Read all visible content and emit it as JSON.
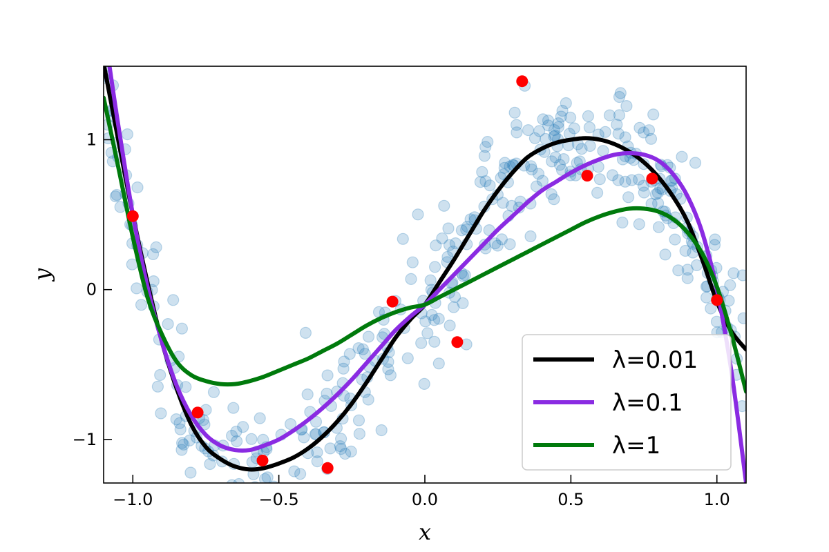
{
  "chart_data": {
    "type": "line",
    "title": "",
    "xlabel": "x",
    "ylabel": "y",
    "xlim": [
      -1.1,
      1.1
    ],
    "ylim": [
      -1.29,
      1.49
    ],
    "x_ticks": [
      -1.0,
      -0.5,
      0.0,
      0.5,
      1.0
    ],
    "x_tick_labels": [
      "−1.0",
      "−0.5",
      "0.0",
      "0.5",
      "1.0"
    ],
    "y_ticks": [
      -1,
      0,
      1
    ],
    "y_tick_labels": [
      "−1",
      "0",
      "1"
    ],
    "grid": false,
    "legend_position": "bottom-right",
    "background_points": {
      "color": "#1f77b4",
      "opacity": 0.22,
      "seed": 7,
      "count": 420,
      "noise_sd": 0.22
    },
    "training_points": {
      "color": "#ff0000",
      "x": [
        -1.0,
        -0.778,
        -0.556,
        -0.333,
        -0.111,
        0.111,
        0.333,
        0.556,
        0.778,
        1.0
      ],
      "y": [
        0.49,
        -0.82,
        -1.14,
        -1.19,
        -0.08,
        -0.35,
        1.39,
        0.76,
        0.74,
        -0.07
      ]
    },
    "series": [
      {
        "name": "λ=0.01",
        "color": "#000000",
        "x": [
          -1.1,
          -1.05,
          -1.0,
          -0.95,
          -0.9,
          -0.85,
          -0.8,
          -0.75,
          -0.7,
          -0.65,
          -0.6,
          -0.55,
          -0.5,
          -0.45,
          -0.4,
          -0.35,
          -0.3,
          -0.25,
          -0.2,
          -0.15,
          -0.1,
          -0.05,
          0.0,
          0.05,
          0.1,
          0.15,
          0.2,
          0.25,
          0.3,
          0.35,
          0.4,
          0.45,
          0.5,
          0.55,
          0.6,
          0.65,
          0.7,
          0.75,
          0.8,
          0.85,
          0.9,
          0.95,
          1.0,
          1.05,
          1.1
        ],
        "y": [
          1.51,
          1.0,
          0.5,
          0.05,
          -0.35,
          -0.66,
          -0.9,
          -1.05,
          -1.13,
          -1.18,
          -1.2,
          -1.19,
          -1.16,
          -1.12,
          -1.06,
          -0.98,
          -0.88,
          -0.76,
          -0.62,
          -0.47,
          -0.32,
          -0.2,
          -0.1,
          0.05,
          0.2,
          0.36,
          0.52,
          0.66,
          0.78,
          0.88,
          0.94,
          0.98,
          1.0,
          1.01,
          1.0,
          0.97,
          0.92,
          0.85,
          0.75,
          0.62,
          0.45,
          0.2,
          -0.08,
          -0.28,
          -0.4
        ]
      },
      {
        "name": "λ=0.1",
        "color": "#8a2be2",
        "x": [
          -1.08,
          -1.05,
          -1.0,
          -0.95,
          -0.9,
          -0.85,
          -0.8,
          -0.75,
          -0.7,
          -0.65,
          -0.6,
          -0.55,
          -0.5,
          -0.45,
          -0.4,
          -0.35,
          -0.3,
          -0.25,
          -0.2,
          -0.15,
          -0.1,
          -0.05,
          0.0,
          0.05,
          0.1,
          0.15,
          0.2,
          0.25,
          0.3,
          0.35,
          0.4,
          0.45,
          0.5,
          0.55,
          0.6,
          0.65,
          0.7,
          0.75,
          0.8,
          0.85,
          0.9,
          0.95,
          1.0,
          1.05,
          1.1
        ],
        "y": [
          1.49,
          1.1,
          0.5,
          0.02,
          -0.35,
          -0.64,
          -0.84,
          -0.97,
          -1.04,
          -1.07,
          -1.07,
          -1.04,
          -1.0,
          -0.94,
          -0.87,
          -0.79,
          -0.7,
          -0.6,
          -0.49,
          -0.38,
          -0.27,
          -0.18,
          -0.1,
          0.0,
          0.1,
          0.2,
          0.3,
          0.4,
          0.49,
          0.58,
          0.66,
          0.72,
          0.78,
          0.83,
          0.87,
          0.9,
          0.91,
          0.9,
          0.86,
          0.77,
          0.62,
          0.38,
          0.0,
          -0.55,
          -1.29
        ]
      },
      {
        "name": "λ=1",
        "color": "#007a0c",
        "x": [
          -1.1,
          -1.05,
          -1.0,
          -0.95,
          -0.9,
          -0.85,
          -0.8,
          -0.75,
          -0.7,
          -0.65,
          -0.6,
          -0.55,
          -0.5,
          -0.45,
          -0.4,
          -0.35,
          -0.3,
          -0.25,
          -0.2,
          -0.15,
          -0.1,
          -0.05,
          0.0,
          0.05,
          0.1,
          0.15,
          0.2,
          0.25,
          0.3,
          0.35,
          0.4,
          0.45,
          0.5,
          0.55,
          0.6,
          0.65,
          0.7,
          0.75,
          0.8,
          0.85,
          0.9,
          0.95,
          1.0,
          1.05,
          1.1
        ],
        "y": [
          1.28,
          0.82,
          0.35,
          -0.05,
          -0.3,
          -0.48,
          -0.57,
          -0.61,
          -0.63,
          -0.63,
          -0.61,
          -0.58,
          -0.54,
          -0.5,
          -0.46,
          -0.41,
          -0.36,
          -0.3,
          -0.24,
          -0.19,
          -0.15,
          -0.12,
          -0.1,
          -0.05,
          0.0,
          0.05,
          0.1,
          0.15,
          0.2,
          0.25,
          0.3,
          0.35,
          0.4,
          0.45,
          0.49,
          0.52,
          0.54,
          0.54,
          0.52,
          0.47,
          0.38,
          0.24,
          0.02,
          -0.3,
          -0.68
        ]
      }
    ]
  }
}
